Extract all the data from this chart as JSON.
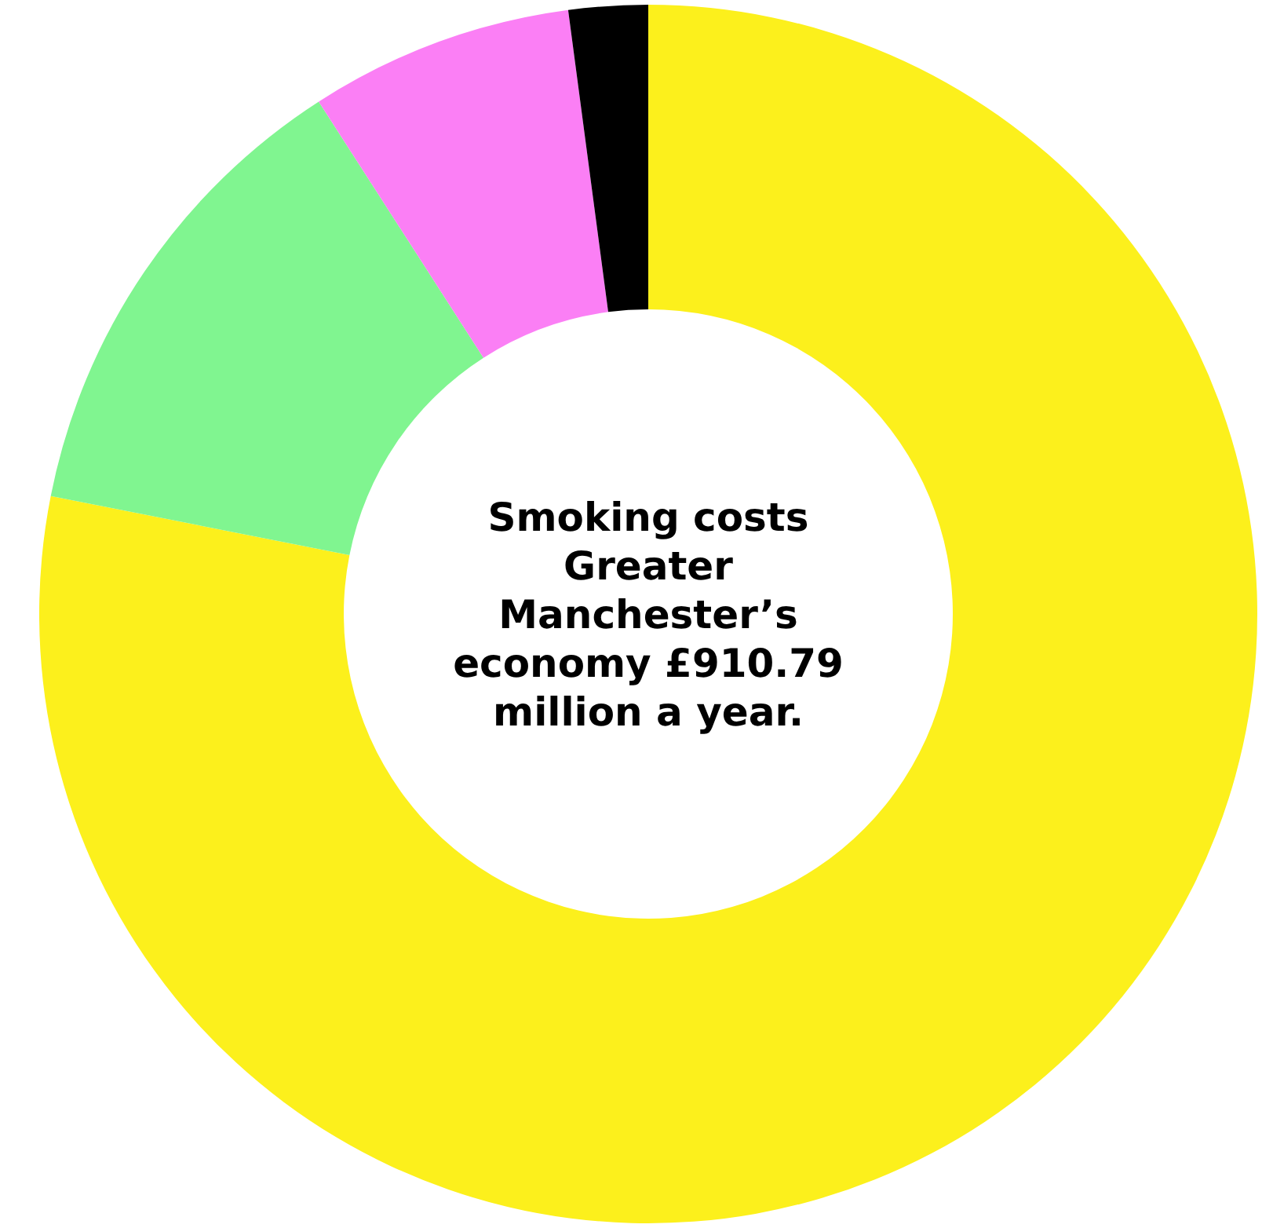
{
  "chart_data": {
    "type": "donut",
    "title": "Smoking costs Greater Manchester’s economy £910.79 million a year.",
    "categories": [
      null,
      null,
      null,
      null
    ],
    "values": [
      78.1,
      12.8,
      7.0,
      2.1
    ],
    "colors": [
      "#fcf01c",
      "#80f590",
      "#fb7ff5",
      "#000000"
    ]
  }
}
